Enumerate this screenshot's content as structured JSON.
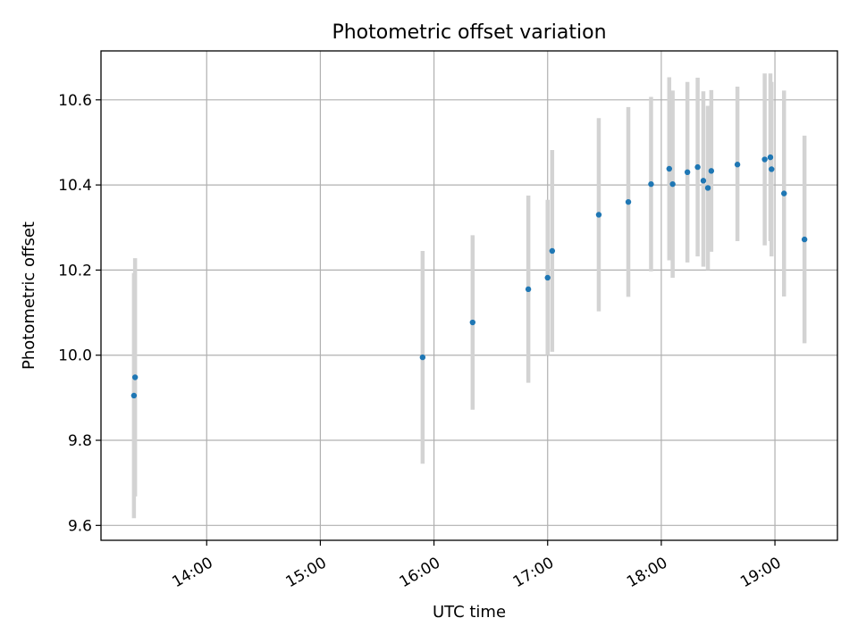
{
  "chart_data": {
    "type": "scatter",
    "title": "Photometric offset variation",
    "xlabel": "UTC time",
    "ylabel": "Photometric offset",
    "x_unit": "UTC hour",
    "xlim": [
      13.07,
      19.55
    ],
    "ylim": [
      9.565,
      10.715
    ],
    "x_ticks": [
      {
        "value": 14,
        "label": "14:00"
      },
      {
        "value": 15,
        "label": "15:00"
      },
      {
        "value": 16,
        "label": "16:00"
      },
      {
        "value": 17,
        "label": "17:00"
      },
      {
        "value": 18,
        "label": "18:00"
      },
      {
        "value": 19,
        "label": "19:00"
      }
    ],
    "y_ticks": [
      {
        "value": 9.6,
        "label": "9.6"
      },
      {
        "value": 9.8,
        "label": "9.8"
      },
      {
        "value": 10.0,
        "label": "10.0"
      },
      {
        "value": 10.2,
        "label": "10.2"
      },
      {
        "value": 10.4,
        "label": "10.4"
      },
      {
        "value": 10.6,
        "label": "10.6"
      }
    ],
    "grid": true,
    "marker_color": "#1f77b4",
    "errorbar_color": "#d3d3d3",
    "points": [
      {
        "x": 13.36,
        "y": 9.905,
        "low": 9.617,
        "high": 10.193
      },
      {
        "x": 13.37,
        "y": 9.948,
        "low": 9.668,
        "high": 10.228
      },
      {
        "x": 15.9,
        "y": 9.995,
        "low": 9.745,
        "high": 10.245
      },
      {
        "x": 16.34,
        "y": 10.077,
        "low": 9.872,
        "high": 10.282
      },
      {
        "x": 16.83,
        "y": 10.155,
        "low": 9.935,
        "high": 10.375
      },
      {
        "x": 17.0,
        "y": 10.182,
        "low": 10.0,
        "high": 10.365
      },
      {
        "x": 17.04,
        "y": 10.245,
        "low": 10.008,
        "high": 10.482
      },
      {
        "x": 17.45,
        "y": 10.33,
        "low": 10.103,
        "high": 10.557
      },
      {
        "x": 17.71,
        "y": 10.36,
        "low": 10.137,
        "high": 10.583
      },
      {
        "x": 17.91,
        "y": 10.402,
        "low": 10.197,
        "high": 10.607
      },
      {
        "x": 18.07,
        "y": 10.438,
        "low": 10.223,
        "high": 10.653
      },
      {
        "x": 18.1,
        "y": 10.402,
        "low": 10.182,
        "high": 10.622
      },
      {
        "x": 18.23,
        "y": 10.43,
        "low": 10.218,
        "high": 10.642
      },
      {
        "x": 18.32,
        "y": 10.442,
        "low": 10.232,
        "high": 10.652
      },
      {
        "x": 18.37,
        "y": 10.41,
        "low": 10.208,
        "high": 10.62
      },
      {
        "x": 18.41,
        "y": 10.393,
        "low": 10.2,
        "high": 10.586
      },
      {
        "x": 18.44,
        "y": 10.433,
        "low": 10.243,
        "high": 10.623
      },
      {
        "x": 18.67,
        "y": 10.448,
        "low": 10.268,
        "high": 10.631
      },
      {
        "x": 18.91,
        "y": 10.46,
        "low": 10.258,
        "high": 10.662
      },
      {
        "x": 18.96,
        "y": 10.465,
        "low": 10.268,
        "high": 10.662
      },
      {
        "x": 18.97,
        "y": 10.437,
        "low": 10.232,
        "high": 10.642
      },
      {
        "x": 19.08,
        "y": 10.38,
        "low": 10.138,
        "high": 10.622
      },
      {
        "x": 19.26,
        "y": 10.272,
        "low": 10.028,
        "high": 10.516
      }
    ]
  }
}
